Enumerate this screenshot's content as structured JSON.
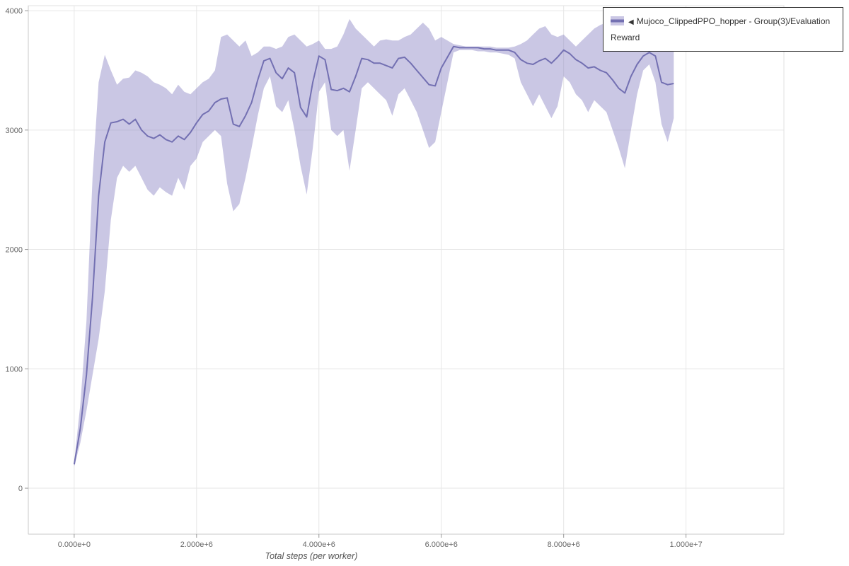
{
  "page": {
    "background": "#ffffff"
  },
  "legend": {
    "items": [
      {
        "arrow": "◀",
        "label": "Mujoco_ClippedPPO_hopper - Group(3)/Evaluation Reward"
      }
    ]
  },
  "chart_data": {
    "type": "line",
    "title": "",
    "xlabel": "Total steps (per worker)",
    "ylabel": "",
    "xlim": [
      -750000,
      11600000
    ],
    "ylim": [
      -385,
      4042
    ],
    "grid": true,
    "legend_position": "top-right",
    "colors": {
      "grid": "#e6e6e6",
      "frame": "#e0e0e0",
      "axis_line": "#c9c9c9",
      "tick": "#999999",
      "tick_text": "#666666",
      "axis_label_text": "#555555"
    },
    "x_ticks": [
      {
        "value": 0,
        "label": "0.000e+0"
      },
      {
        "value": 2000000,
        "label": "2.000e+6"
      },
      {
        "value": 4000000,
        "label": "4.000e+6"
      },
      {
        "value": 6000000,
        "label": "6.000e+6"
      },
      {
        "value": 8000000,
        "label": "8.000e+6"
      },
      {
        "value": 10000000,
        "label": "1.000e+7"
      }
    ],
    "y_ticks": [
      {
        "value": 0,
        "label": "0"
      },
      {
        "value": 1000,
        "label": "1000"
      },
      {
        "value": 2000,
        "label": "2000"
      },
      {
        "value": 3000,
        "label": "3000"
      },
      {
        "value": 4000,
        "label": "4000"
      }
    ],
    "series": [
      {
        "name": "Mujoco_ClippedPPO_hopper - Group(3)/Evaluation Reward",
        "line_color": "#7370b2",
        "band_color": "#8a82c4",
        "band_opacity": 0.45,
        "x": {
          "start": 0,
          "step": 100000,
          "count": 99
        },
        "mean": [
          200,
          500,
          950,
          1600,
          2450,
          2900,
          3060,
          3070,
          3090,
          3050,
          3090,
          3000,
          2950,
          2930,
          2960,
          2920,
          2900,
          2950,
          2920,
          2980,
          3060,
          3130,
          3160,
          3230,
          3260,
          3270,
          3050,
          3030,
          3120,
          3230,
          3420,
          3580,
          3600,
          3480,
          3430,
          3520,
          3480,
          3190,
          3110,
          3400,
          3620,
          3590,
          3340,
          3330,
          3350,
          3320,
          3450,
          3600,
          3590,
          3560,
          3560,
          3540,
          3520,
          3600,
          3610,
          3560,
          3500,
          3440,
          3380,
          3370,
          3520,
          3610,
          3700,
          3690,
          3690,
          3690,
          3690,
          3680,
          3680,
          3670,
          3670,
          3670,
          3650,
          3590,
          3560,
          3550,
          3580,
          3600,
          3560,
          3610,
          3670,
          3640,
          3590,
          3560,
          3520,
          3530,
          3500,
          3480,
          3420,
          3350,
          3310,
          3450,
          3550,
          3620,
          3650,
          3620,
          3400,
          3380,
          3390
        ],
        "lower": [
          180,
          380,
          650,
          950,
          1250,
          1650,
          2250,
          2600,
          2700,
          2650,
          2700,
          2600,
          2500,
          2450,
          2520,
          2480,
          2450,
          2600,
          2500,
          2700,
          2760,
          2900,
          2950,
          3000,
          2950,
          2550,
          2320,
          2380,
          2600,
          2850,
          3120,
          3350,
          3450,
          3200,
          3150,
          3250,
          3000,
          2700,
          2460,
          2850,
          3320,
          3400,
          3000,
          2950,
          3000,
          2660,
          3000,
          3350,
          3400,
          3350,
          3300,
          3250,
          3120,
          3300,
          3350,
          3250,
          3150,
          3000,
          2850,
          2900,
          3150,
          3400,
          3650,
          3670,
          3670,
          3670,
          3660,
          3660,
          3650,
          3650,
          3640,
          3630,
          3600,
          3400,
          3300,
          3200,
          3300,
          3200,
          3100,
          3200,
          3450,
          3400,
          3300,
          3250,
          3150,
          3250,
          3200,
          3150,
          3000,
          2850,
          2680,
          3000,
          3300,
          3500,
          3550,
          3400,
          3050,
          2900,
          3100
        ],
        "upper": [
          220,
          700,
          1400,
          2600,
          3400,
          3630,
          3500,
          3380,
          3430,
          3440,
          3500,
          3480,
          3450,
          3400,
          3380,
          3350,
          3300,
          3380,
          3320,
          3300,
          3350,
          3400,
          3430,
          3500,
          3780,
          3800,
          3750,
          3700,
          3750,
          3620,
          3650,
          3700,
          3700,
          3680,
          3700,
          3780,
          3800,
          3750,
          3700,
          3720,
          3750,
          3680,
          3680,
          3700,
          3800,
          3930,
          3850,
          3800,
          3750,
          3700,
          3750,
          3760,
          3750,
          3750,
          3780,
          3800,
          3850,
          3900,
          3850,
          3750,
          3780,
          3750,
          3720,
          3710,
          3700,
          3700,
          3700,
          3700,
          3700,
          3690,
          3690,
          3690,
          3700,
          3720,
          3750,
          3800,
          3850,
          3870,
          3800,
          3780,
          3800,
          3750,
          3700,
          3750,
          3800,
          3850,
          3880,
          3900,
          3920,
          3930,
          3900,
          3800,
          3700,
          3720,
          3750,
          3780,
          3800,
          3820,
          3750
        ]
      }
    ]
  }
}
